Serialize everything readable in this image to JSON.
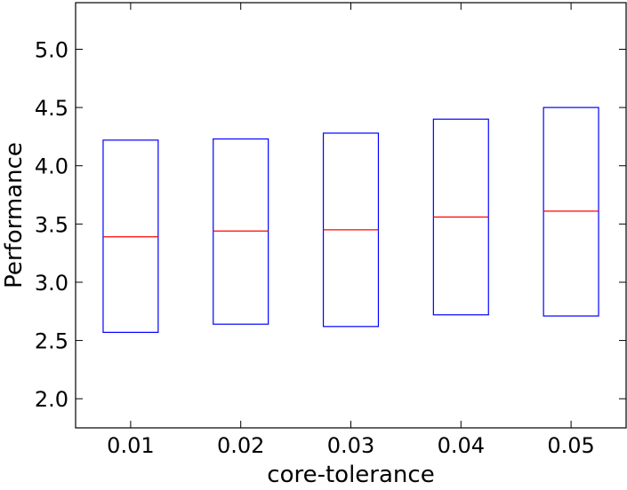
{
  "chart_data": {
    "type": "box",
    "xlabel": "core-tolerance",
    "ylabel": "Performance",
    "ylim": [
      1.75,
      5.4
    ],
    "yticks": [
      2.0,
      2.5,
      3.0,
      3.5,
      4.0,
      4.5,
      5.0
    ],
    "ytick_labels": [
      "2.0",
      "2.5",
      "3.0",
      "3.5",
      "4.0",
      "4.5",
      "5.0"
    ],
    "categories": [
      "0.01",
      "0.02",
      "0.03",
      "0.04",
      "0.05"
    ],
    "boxes": [
      {
        "q1": 2.57,
        "median": 3.39,
        "q3": 4.22
      },
      {
        "q1": 2.64,
        "median": 3.44,
        "q3": 4.23
      },
      {
        "q1": 2.62,
        "median": 3.45,
        "q3": 4.28
      },
      {
        "q1": 2.72,
        "median": 3.56,
        "q3": 4.4
      },
      {
        "q1": 2.71,
        "median": 3.61,
        "q3": 4.5
      }
    ],
    "grid": false,
    "box_color": "#0000ff",
    "median_color": "#ff0000"
  }
}
